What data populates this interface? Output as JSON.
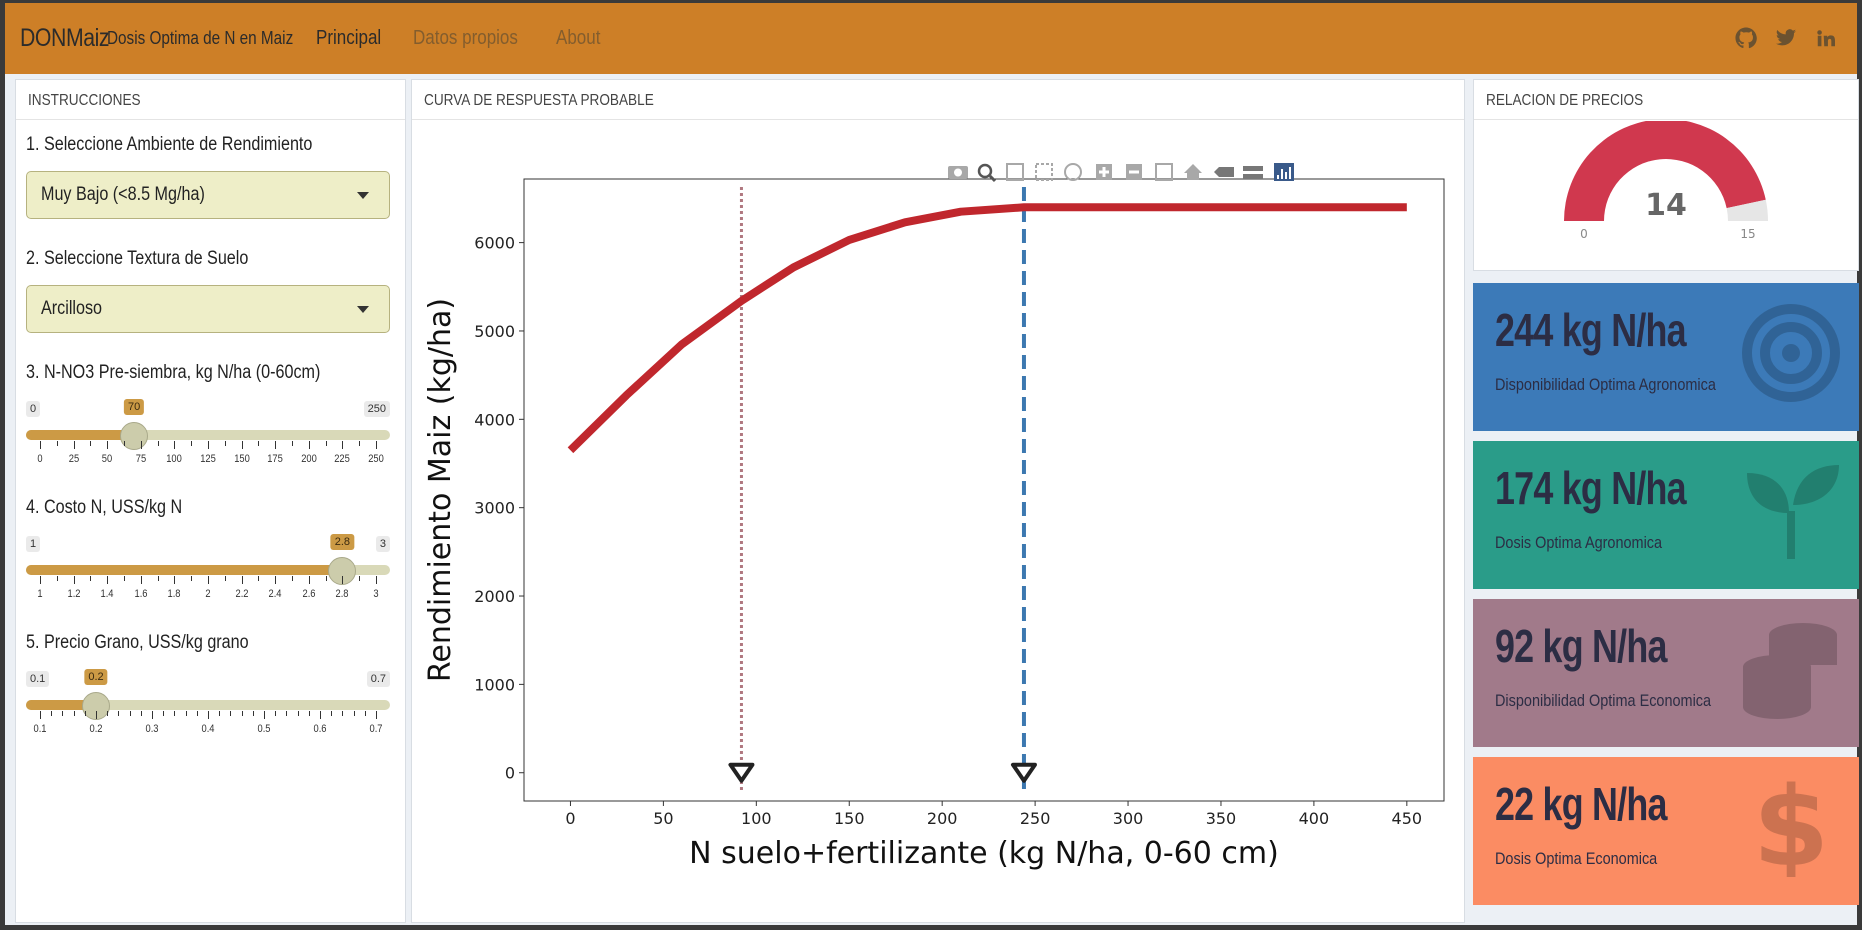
{
  "navbar": {
    "brand": "DONMaiz",
    "subtitle": "Dosis Optima de N en Maiz",
    "links": [
      {
        "label": "Principal",
        "active": true
      },
      {
        "label": "Datos propios",
        "active": false
      },
      {
        "label": "About",
        "active": false
      }
    ],
    "icons": [
      "github-icon",
      "twitter-icon",
      "linkedin-icon"
    ]
  },
  "instructions": {
    "title": "INSTRUCCIONES",
    "step1_label": "1. Seleccione Ambiente de Rendimiento",
    "step1_value": "Muy Bajo (<8.5 Mg/ha)",
    "step2_label": "2. Seleccione Textura de Suelo",
    "step2_value": "Arcilloso",
    "step3": {
      "label": "3. N-NO3 Pre-siembra, kg N/ha (0-60cm)",
      "min": "0",
      "max": "250",
      "value": "70",
      "fraction": 0.28,
      "ticks": [
        "0",
        "25",
        "50",
        "75",
        "100",
        "125",
        "150",
        "175",
        "200",
        "225",
        "250"
      ]
    },
    "step4": {
      "label": "4. Costo N, USS/kg N",
      "min": "1",
      "max": "3",
      "value": "2.8",
      "fraction": 0.9,
      "ticks": [
        "1",
        "1.2",
        "1.4",
        "1.6",
        "1.8",
        "2",
        "2.2",
        "2.4",
        "2.6",
        "2.8",
        "3"
      ]
    },
    "step5": {
      "label": "5. Precio Grano, USS/kg grano",
      "min": "0.1",
      "max": "0.7",
      "value": "0.2",
      "fraction": 0.1667,
      "ticks": [
        "0.1",
        "0.2",
        "0.3",
        "0.4",
        "0.5",
        "0.6",
        "0.7"
      ]
    }
  },
  "curve": {
    "title": "CURVA DE RESPUESTA PROBABLE"
  },
  "chart_data": {
    "type": "line",
    "xlabel": "N suelo+fertilizante (kg N/ha, 0-60 cm)",
    "ylabel": "Rendimiento Maiz (kg/ha)",
    "xlim": [
      -25,
      470
    ],
    "ylim": [
      -320,
      6720
    ],
    "xticks": [
      "0",
      "50",
      "100",
      "150",
      "200",
      "250",
      "300",
      "350",
      "400",
      "450"
    ],
    "yticks": [
      "0",
      "1000",
      "2000",
      "3000",
      "4000",
      "5000",
      "6000"
    ],
    "series": [
      {
        "x": [
          0,
          30,
          60,
          92,
          120,
          150,
          180,
          210,
          244,
          300,
          350,
          400,
          450
        ],
        "y": [
          3650,
          4270,
          4850,
          5340,
          5720,
          6030,
          6230,
          6350,
          6400,
          6400,
          6400,
          6400,
          6400
        ],
        "color": "#c0272d"
      }
    ],
    "vlines": [
      {
        "x": 92,
        "style": "dotted",
        "color": "#b07880"
      },
      {
        "x": 244,
        "style": "dashed",
        "color": "#3c78b0"
      }
    ],
    "markers": [
      {
        "x": 92,
        "y": 0
      },
      {
        "x": 244,
        "y": 0
      }
    ]
  },
  "prices": {
    "title": "RELACION DE PRECIOS",
    "gauge_value": "14",
    "gauge_min": "0",
    "gauge_max": "15",
    "gauge_fraction": 0.9333,
    "gauge_color": "#d0384e"
  },
  "valueboxes": [
    {
      "value": "244 kg N/ha",
      "desc": "Disponibilidad Optima Agronomica",
      "color": "#3c7ab8",
      "icon": "target-icon"
    },
    {
      "value": "174 kg N/ha",
      "desc": "Dosis Optima Agronomica",
      "color": "#2a9c89",
      "icon": "seedling-icon"
    },
    {
      "value": "92 kg N/ha",
      "desc": "Disponibilidad Optima Economica",
      "color": "#a17a8a",
      "icon": "coins-icon"
    },
    {
      "value": "22 kg N/ha",
      "desc": "Dosis Optima Economica",
      "color": "#fb8c63",
      "icon": "dollar-icon"
    }
  ]
}
